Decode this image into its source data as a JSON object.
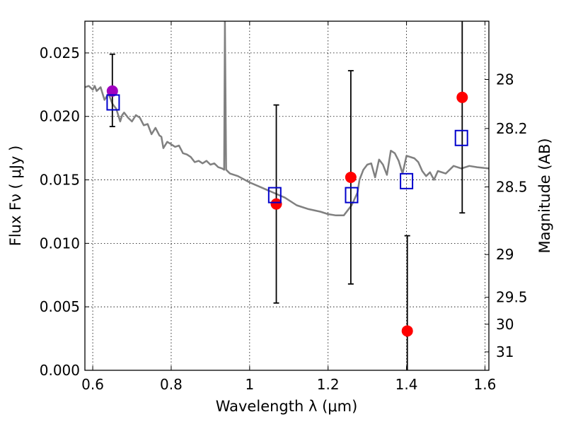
{
  "chart_data": {
    "type": "scatter",
    "xlabel": "Wavelength  λ (μm)",
    "ylabel_left": "Flux  Fν  ( μJy )",
    "ylabel_right": "Magnitude (AB)",
    "xlim": [
      0.58,
      1.61
    ],
    "ylim": [
      0,
      0.0275
    ],
    "grid": true,
    "x_ticks": [
      {
        "value": 0.6,
        "label": "0.6"
      },
      {
        "value": 0.8,
        "label": "0.8"
      },
      {
        "value": 1.0,
        "label": "1"
      },
      {
        "value": 1.2,
        "label": "1.2"
      },
      {
        "value": 1.4,
        "label": "1.4"
      },
      {
        "value": 1.6,
        "label": "1.6"
      }
    ],
    "y_ticks": [
      {
        "value": 0.0,
        "label": "0.000"
      },
      {
        "value": 0.005,
        "label": "0.005"
      },
      {
        "value": 0.01,
        "label": "0.010"
      },
      {
        "value": 0.015,
        "label": "0.015"
      },
      {
        "value": 0.02,
        "label": "0.020"
      },
      {
        "value": 0.025,
        "label": "0.025"
      }
    ],
    "right_ticks": [
      {
        "flux": 0.02291,
        "label": "28"
      },
      {
        "flux": 0.01905,
        "label": "28.2"
      },
      {
        "flux": 0.01445,
        "label": "28.5"
      },
      {
        "flux": 0.00912,
        "label": "29"
      },
      {
        "flux": 0.00575,
        "label": "29.5"
      },
      {
        "flux": 0.00363,
        "label": "30"
      },
      {
        "flux": 0.00145,
        "label": "31"
      }
    ],
    "model_spectrum": {
      "color": "#808080",
      "x": [
        0.58,
        0.59,
        0.6,
        0.605,
        0.61,
        0.62,
        0.63,
        0.64,
        0.65,
        0.66,
        0.67,
        0.675,
        0.68,
        0.69,
        0.7,
        0.71,
        0.72,
        0.73,
        0.74,
        0.75,
        0.76,
        0.77,
        0.775,
        0.78,
        0.79,
        0.8,
        0.81,
        0.82,
        0.83,
        0.84,
        0.85,
        0.86,
        0.87,
        0.88,
        0.89,
        0.9,
        0.91,
        0.92,
        0.93,
        0.935,
        0.937,
        0.94,
        0.95,
        0.97,
        1.0,
        1.03,
        1.06,
        1.09,
        1.12,
        1.15,
        1.18,
        1.2,
        1.22,
        1.24,
        1.26,
        1.275,
        1.28,
        1.29,
        1.3,
        1.31,
        1.32,
        1.33,
        1.34,
        1.35,
        1.36,
        1.37,
        1.38,
        1.39,
        1.4,
        1.42,
        1.43,
        1.44,
        1.45,
        1.46,
        1.47,
        1.48,
        1.5,
        1.52,
        1.54,
        1.56,
        1.58,
        1.61
      ],
      "y": [
        0.0223,
        0.0224,
        0.0221,
        0.0224,
        0.022,
        0.0223,
        0.0213,
        0.0218,
        0.021,
        0.0206,
        0.0196,
        0.0201,
        0.0203,
        0.0199,
        0.0196,
        0.0201,
        0.0199,
        0.0193,
        0.0194,
        0.0186,
        0.0191,
        0.0185,
        0.0184,
        0.0175,
        0.018,
        0.0178,
        0.0176,
        0.0177,
        0.0171,
        0.017,
        0.0168,
        0.0164,
        0.0165,
        0.0163,
        0.0165,
        0.0162,
        0.0163,
        0.016,
        0.0159,
        0.0158,
        0.0275,
        0.0158,
        0.0155,
        0.0153,
        0.0148,
        0.0144,
        0.014,
        0.0136,
        0.013,
        0.0127,
        0.0125,
        0.0123,
        0.0122,
        0.0122,
        0.013,
        0.014,
        0.015,
        0.0158,
        0.0162,
        0.0163,
        0.0152,
        0.0166,
        0.0162,
        0.0154,
        0.0173,
        0.0171,
        0.0165,
        0.0155,
        0.0169,
        0.0167,
        0.0164,
        0.0157,
        0.0153,
        0.0156,
        0.015,
        0.0157,
        0.0155,
        0.0161,
        0.0159,
        0.0161,
        0.016,
        0.0159
      ]
    },
    "series": [
      {
        "marker": "circle",
        "color": "#ff0000",
        "points": [
          {
            "x": 1.068,
            "y": 0.0131,
            "err_lo": 0.0053,
            "err_hi": 0.0209
          },
          {
            "x": 1.258,
            "y": 0.0152,
            "err_lo": 0.0068,
            "err_hi": 0.0236
          },
          {
            "x": 1.402,
            "y": 0.0031,
            "err_lo": 0.0,
            "err_hi": 0.0106
          },
          {
            "x": 1.542,
            "y": 0.0215,
            "err_lo": 0.0124,
            "err_hi": 0.0275
          }
        ]
      },
      {
        "marker": "circle",
        "color": "#a000c0",
        "points": [
          {
            "x": 0.65,
            "y": 0.022,
            "err_lo": 0.0192,
            "err_hi": 0.0249
          }
        ]
      },
      {
        "marker": "open-square",
        "color": "#0000cc",
        "points": [
          {
            "x": 0.652,
            "y": 0.0211
          },
          {
            "x": 1.064,
            "y": 0.0138
          },
          {
            "x": 1.26,
            "y": 0.0138
          },
          {
            "x": 1.4,
            "y": 0.0149
          },
          {
            "x": 1.54,
            "y": 0.0183
          }
        ]
      }
    ]
  }
}
